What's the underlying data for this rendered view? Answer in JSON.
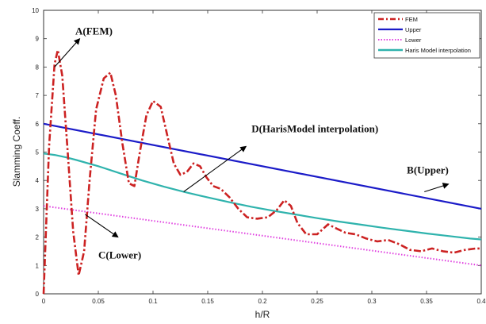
{
  "chart_data": {
    "type": "line",
    "xlabel": "h/R",
    "ylabel": "Slamming Coeff.",
    "xlim": [
      0,
      0.4
    ],
    "ylim": [
      0,
      10
    ],
    "x_ticks": [
      "0",
      "0.05",
      "0.1",
      "0.15",
      "0.2",
      "0.25",
      "0.3",
      "0.35",
      "0.4"
    ],
    "y_ticks": [
      "0",
      "1",
      "2",
      "3",
      "4",
      "5",
      "6",
      "7",
      "8",
      "9",
      "10"
    ],
    "grid": false,
    "legend_position": "top-right",
    "series": [
      {
        "name": "FEM",
        "color": "#cc2222",
        "style": "dash-dot",
        "x": [
          0,
          0.005,
          0.01,
          0.013,
          0.017,
          0.022,
          0.027,
          0.032,
          0.037,
          0.042,
          0.048,
          0.055,
          0.061,
          0.066,
          0.072,
          0.078,
          0.083,
          0.088,
          0.094,
          0.1,
          0.107,
          0.113,
          0.119,
          0.125,
          0.131,
          0.137,
          0.143,
          0.149,
          0.155,
          0.162,
          0.17,
          0.178,
          0.186,
          0.195,
          0.205,
          0.213,
          0.22,
          0.226,
          0.232,
          0.24,
          0.25,
          0.26,
          0.268,
          0.276,
          0.285,
          0.295,
          0.305,
          0.315,
          0.325,
          0.335,
          0.345,
          0.355,
          0.365,
          0.375,
          0.385,
          0.395,
          0.4
        ],
        "y": [
          0,
          5.2,
          8.1,
          8.6,
          7.7,
          5.0,
          2.2,
          0.65,
          1.5,
          4.0,
          6.5,
          7.6,
          7.8,
          7.0,
          5.3,
          3.9,
          3.8,
          5.0,
          6.3,
          6.8,
          6.6,
          5.6,
          4.6,
          4.2,
          4.3,
          4.6,
          4.5,
          4.1,
          3.8,
          3.7,
          3.4,
          3.0,
          2.7,
          2.65,
          2.7,
          2.95,
          3.3,
          3.1,
          2.5,
          2.1,
          2.1,
          2.45,
          2.3,
          2.15,
          2.1,
          1.95,
          1.85,
          1.9,
          1.75,
          1.55,
          1.5,
          1.6,
          1.5,
          1.45,
          1.55,
          1.6,
          1.6
        ]
      },
      {
        "name": "Upper",
        "color": "#1b1bc8",
        "style": "solid",
        "x": [
          0,
          0.4
        ],
        "y": [
          6.0,
          3.0
        ]
      },
      {
        "name": "Lower",
        "color": "#e040e0",
        "style": "dotted",
        "x": [
          0,
          0.4
        ],
        "y": [
          3.1,
          1.0
        ]
      },
      {
        "name": "Haris Model interpolation",
        "color": "#2fb3ad",
        "style": "solid",
        "x": [
          0,
          0.01,
          0.02,
          0.03,
          0.05,
          0.07,
          0.09,
          0.11,
          0.13,
          0.15,
          0.17,
          0.19,
          0.21,
          0.23,
          0.25,
          0.27,
          0.29,
          0.31,
          0.33,
          0.35,
          0.37,
          0.39,
          0.4
        ],
        "y": [
          4.95,
          4.9,
          4.82,
          4.72,
          4.5,
          4.25,
          4.0,
          3.78,
          3.58,
          3.4,
          3.23,
          3.07,
          2.93,
          2.8,
          2.67,
          2.55,
          2.44,
          2.33,
          2.23,
          2.13,
          2.04,
          1.95,
          1.92
        ]
      }
    ],
    "annotations": [
      {
        "text": "A(FEM)",
        "x_arrow": [
          0.01,
          0.033
        ],
        "y_arrow": [
          8.0,
          9.0
        ],
        "label_at": [
          0.029,
          9.15
        ]
      },
      {
        "text": "D(HarisModel interpolation)",
        "x_arrow": [
          0.128,
          0.185
        ],
        "y_arrow": [
          3.6,
          5.2
        ],
        "label_at": [
          0.19,
          5.7
        ]
      },
      {
        "text": "B(Upper)",
        "x_arrow": [
          0.348,
          0.37
        ],
        "y_arrow": [
          3.6,
          3.87
        ],
        "label_at": [
          0.332,
          4.25
        ]
      },
      {
        "text": "C(Lower)",
        "x_arrow": [
          0.038,
          0.068
        ],
        "y_arrow": [
          2.8,
          2.0
        ],
        "label_at": [
          0.05,
          1.25
        ]
      }
    ]
  }
}
